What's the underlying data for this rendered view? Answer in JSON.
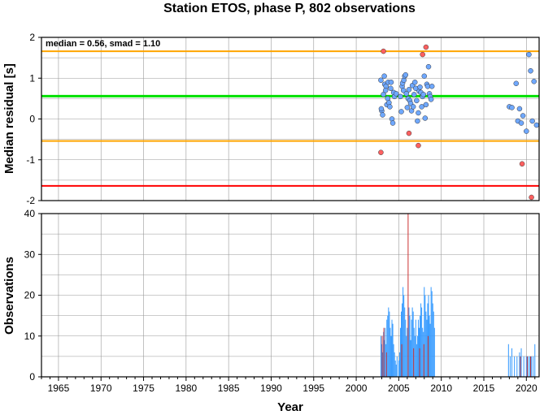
{
  "chart_data": [
    {
      "type": "scatter",
      "title": "Station ETOS, phase P, 802 observations",
      "annotation": "median = 0.56, smad = 1.10",
      "ylabel": "Median residual [s]",
      "xlim": [
        1963,
        2021.5
      ],
      "ylim": [
        -2,
        2
      ],
      "yticks": [
        -2,
        -1,
        0,
        1,
        2
      ],
      "grid": true,
      "reference_lines": [
        {
          "value": 0.56,
          "color": "#00e000",
          "role": "median"
        },
        {
          "value": 1.66,
          "color": "#ffa500",
          "role": "upper"
        },
        {
          "value": -0.54,
          "color": "#ffa500",
          "role": "lower"
        },
        {
          "value": -1.64,
          "color": "#ff0000",
          "role": "lower-outer"
        }
      ],
      "series": [
        {
          "color": "#6fa8ff",
          "points": [
            [
              2002.9,
              0.95
            ],
            [
              2003.0,
              0.2
            ],
            [
              2003.1,
              0.1
            ],
            [
              2003.2,
              0.6
            ],
            [
              2003.3,
              1.05
            ],
            [
              2003.35,
              0.85
            ],
            [
              2003.5,
              0.8
            ],
            [
              2003.6,
              0.35
            ],
            [
              2003.7,
              0.5
            ],
            [
              2003.75,
              0.9
            ],
            [
              2003.85,
              0.4
            ],
            [
              2003.95,
              0.3
            ],
            [
              2004.05,
              0.75
            ],
            [
              2004.1,
              0.9
            ],
            [
              2004.2,
              0.0
            ],
            [
              2004.3,
              -0.1
            ],
            [
              2004.4,
              0.65
            ],
            [
              2004.5,
              0.55
            ],
            [
              2002.95,
              0.25
            ],
            [
              2003.45,
              0.7
            ],
            [
              2004.7,
              0.62
            ],
            [
              2005.2,
              0.55
            ],
            [
              2005.3,
              0.18
            ],
            [
              2005.4,
              0.8
            ],
            [
              2005.45,
              0.88
            ],
            [
              2005.55,
              0.7
            ],
            [
              2005.6,
              0.95
            ],
            [
              2005.7,
              1.05
            ],
            [
              2005.8,
              1.08
            ],
            [
              2005.9,
              0.62
            ],
            [
              2006.0,
              0.28
            ],
            [
              2006.1,
              0.5
            ],
            [
              2006.2,
              0.72
            ],
            [
              2006.3,
              0.45
            ],
            [
              2006.4,
              0.38
            ],
            [
              2006.5,
              0.2
            ],
            [
              2006.6,
              0.82
            ],
            [
              2006.7,
              0.3
            ],
            [
              2006.8,
              0.6
            ],
            [
              2006.9,
              0.9
            ],
            [
              2007.0,
              0.75
            ],
            [
              2007.1,
              0.45
            ],
            [
              2007.2,
              -0.05
            ],
            [
              2007.3,
              0.15
            ],
            [
              2007.4,
              0.68
            ],
            [
              2007.5,
              0.78
            ],
            [
              2007.6,
              0.65
            ],
            [
              2007.7,
              0.3
            ],
            [
              2007.8,
              0.55
            ],
            [
              2007.9,
              0.6
            ],
            [
              2008.0,
              1.05
            ],
            [
              2008.1,
              0.02
            ],
            [
              2008.2,
              0.35
            ],
            [
              2008.3,
              0.85
            ],
            [
              2008.4,
              0.8
            ],
            [
              2008.5,
              1.28
            ],
            [
              2008.6,
              0.62
            ],
            [
              2008.7,
              0.55
            ],
            [
              2008.8,
              0.48
            ],
            [
              2008.9,
              0.8
            ],
            [
              2018.0,
              0.3
            ],
            [
              2018.3,
              0.28
            ],
            [
              2018.8,
              0.87
            ],
            [
              2019.0,
              -0.05
            ],
            [
              2019.2,
              0.25
            ],
            [
              2019.4,
              -0.1
            ],
            [
              2019.6,
              0.08
            ],
            [
              2020.0,
              -0.3
            ],
            [
              2020.3,
              1.58
            ],
            [
              2020.5,
              1.18
            ],
            [
              2020.7,
              -0.05
            ],
            [
              2020.9,
              0.92
            ],
            [
              2021.2,
              -0.15
            ]
          ]
        },
        {
          "color": "#ff6060",
          "points": [
            [
              2002.9,
              -0.82
            ],
            [
              2003.2,
              1.66
            ],
            [
              2006.2,
              -0.35
            ],
            [
              2007.3,
              -0.65
            ],
            [
              2007.8,
              1.58
            ],
            [
              2008.2,
              1.76
            ],
            [
              2019.5,
              -1.1
            ],
            [
              2020.6,
              -1.92
            ]
          ]
        }
      ]
    },
    {
      "type": "bar",
      "xlabel": "Year",
      "ylabel": "Observations",
      "xlim": [
        1963,
        2021.5
      ],
      "ylim": [
        0,
        40
      ],
      "yticks": [
        0,
        10,
        20,
        30,
        40
      ],
      "xticks": [
        1965,
        1970,
        1975,
        1980,
        1985,
        1990,
        1995,
        2000,
        2005,
        2010,
        2015,
        2020
      ],
      "grid": true,
      "series": [
        {
          "color": "#3399ff",
          "bars": [
            [
              2002.9,
              10
            ],
            [
              2003.0,
              8
            ],
            [
              2003.1,
              6
            ],
            [
              2003.2,
              11
            ],
            [
              2003.3,
              9
            ],
            [
              2003.4,
              12
            ],
            [
              2003.5,
              8
            ],
            [
              2003.6,
              14
            ],
            [
              2003.7,
              15
            ],
            [
              2003.8,
              17
            ],
            [
              2003.9,
              16
            ],
            [
              2004.0,
              12
            ],
            [
              2004.1,
              10
            ],
            [
              2004.2,
              14
            ],
            [
              2004.3,
              13
            ],
            [
              2004.4,
              8
            ],
            [
              2004.5,
              6
            ],
            [
              2004.6,
              4
            ],
            [
              2004.7,
              3
            ],
            [
              2004.8,
              5
            ],
            [
              2005.0,
              4
            ],
            [
              2005.1,
              6
            ],
            [
              2005.2,
              12
            ],
            [
              2005.3,
              16
            ],
            [
              2005.4,
              18
            ],
            [
              2005.5,
              22
            ],
            [
              2005.6,
              20
            ],
            [
              2005.7,
              17
            ],
            [
              2005.8,
              14
            ],
            [
              2005.9,
              10
            ],
            [
              2006.0,
              12
            ],
            [
              2006.2,
              17
            ],
            [
              2006.3,
              15
            ],
            [
              2006.4,
              9
            ],
            [
              2006.5,
              14
            ],
            [
              2006.6,
              17
            ],
            [
              2006.7,
              16
            ],
            [
              2006.8,
              12
            ],
            [
              2006.9,
              10
            ],
            [
              2007.0,
              14
            ],
            [
              2007.1,
              8
            ],
            [
              2007.2,
              10
            ],
            [
              2007.3,
              14
            ],
            [
              2007.4,
              12
            ],
            [
              2007.5,
              15
            ],
            [
              2007.6,
              18
            ],
            [
              2007.7,
              17
            ],
            [
              2007.8,
              12
            ],
            [
              2007.9,
              11
            ],
            [
              2008.0,
              22
            ],
            [
              2008.1,
              20
            ],
            [
              2008.2,
              16
            ],
            [
              2008.3,
              14
            ],
            [
              2008.4,
              18
            ],
            [
              2008.5,
              20
            ],
            [
              2008.6,
              15
            ],
            [
              2008.7,
              13
            ],
            [
              2008.8,
              22
            ],
            [
              2008.9,
              21
            ],
            [
              2009.0,
              18
            ],
            [
              2009.1,
              16
            ],
            [
              2009.2,
              12
            ],
            [
              2017.9,
              8
            ],
            [
              2018.1,
              5
            ],
            [
              2018.3,
              7
            ],
            [
              2018.6,
              5
            ],
            [
              2018.9,
              5
            ],
            [
              2019.2,
              6
            ],
            [
              2019.4,
              7
            ],
            [
              2019.7,
              5
            ],
            [
              2020.0,
              5
            ],
            [
              2020.2,
              5
            ],
            [
              2020.4,
              5
            ],
            [
              2020.6,
              5
            ],
            [
              2020.8,
              5
            ],
            [
              2021.0,
              8
            ]
          ]
        },
        {
          "color": "#cc3333",
          "bars": [
            [
              2003.05,
              10
            ],
            [
              2003.25,
              12
            ],
            [
              2003.55,
              6
            ],
            [
              2005.35,
              8
            ],
            [
              2006.1,
              40
            ],
            [
              2006.75,
              7
            ],
            [
              2007.45,
              7
            ],
            [
              2007.95,
              8
            ],
            [
              2008.45,
              10
            ],
            [
              2019.3,
              5
            ],
            [
              2020.1,
              5
            ],
            [
              2020.5,
              5
            ]
          ]
        }
      ]
    }
  ]
}
